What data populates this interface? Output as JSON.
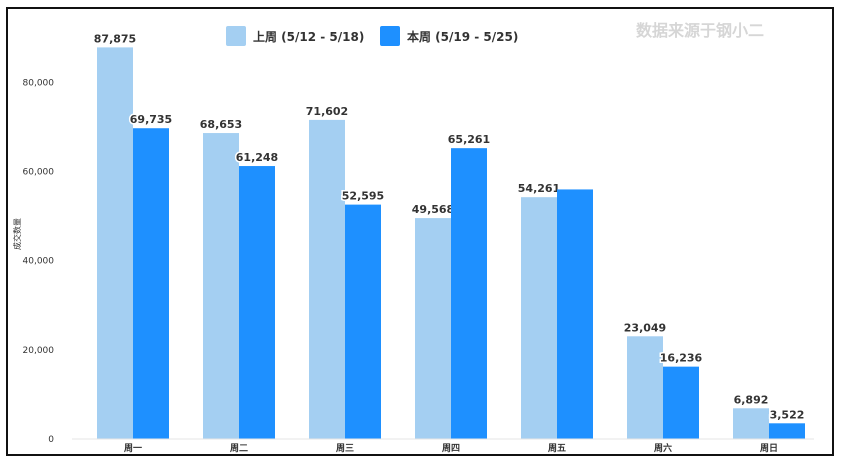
{
  "watermark": "数据来源于钢小二",
  "chart_data": {
    "type": "bar",
    "categories": [
      "周一",
      "周二",
      "周三",
      "周四",
      "周五",
      "周六",
      "周日"
    ],
    "series": [
      {
        "name": "上周 (5/12 - 5/18)",
        "color": "#a4cff2",
        "values": [
          87875,
          68653,
          71602,
          49568,
          54261,
          23049,
          6892
        ],
        "labels": [
          "87,875",
          "68,653",
          "71,602",
          "49,568",
          "54,261",
          "23,049",
          "6,892"
        ]
      },
      {
        "name": "本周 (5/19 - 5/25)",
        "color": "#1e90ff",
        "values": [
          69735,
          61248,
          52595,
          65261,
          56000,
          16236,
          3522
        ],
        "labels": [
          "69,735",
          "61,248",
          "52,595",
          "65,261",
          "",
          "16,236",
          "3,522"
        ]
      }
    ],
    "ylabel": "成交数量",
    "ylim": [
      0,
      92000
    ],
    "yticks": [
      0,
      20000,
      40000,
      60000,
      80000
    ],
    "ytick_labels": [
      "0",
      "20,000",
      "40,000",
      "60,000",
      "80,000"
    ],
    "legend_position": "top-center",
    "grid": false
  }
}
